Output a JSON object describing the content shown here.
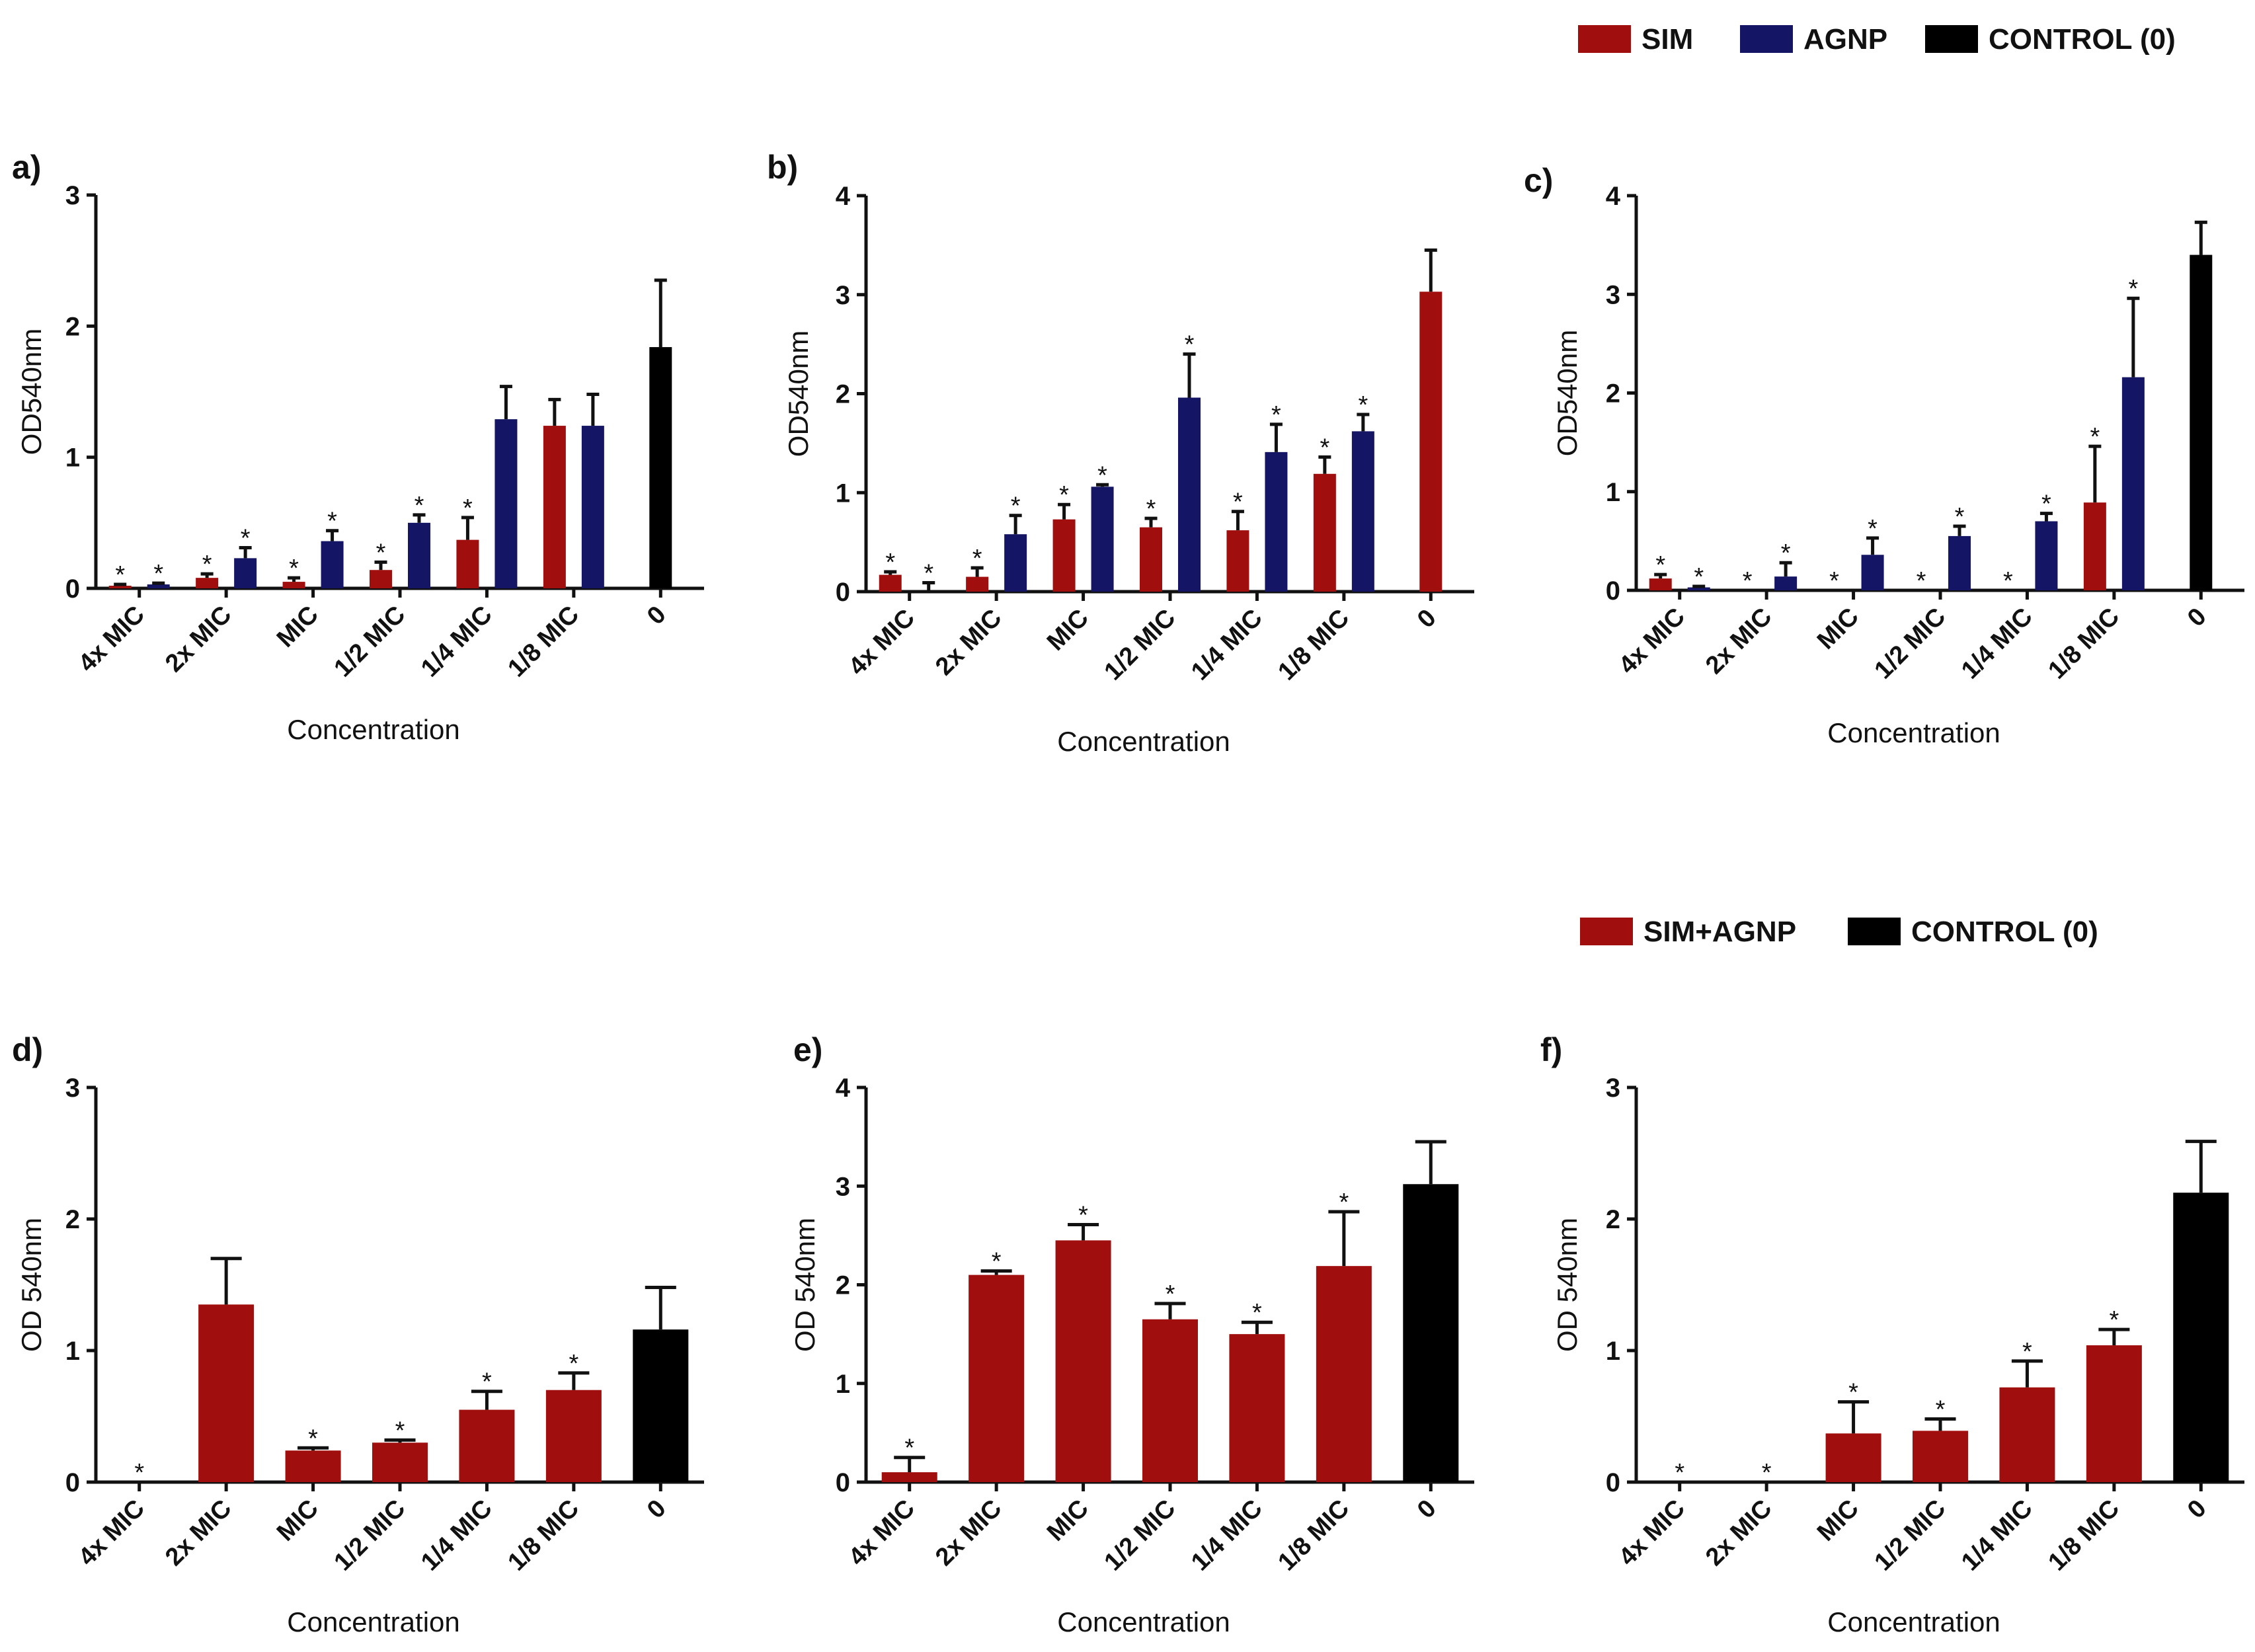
{
  "colors": {
    "SIM": "#a00e0e",
    "AGNP": "#151565",
    "CONTROL": "#000000",
    "SIM+AGNP": "#a00e0e"
  },
  "legends": [
    {
      "id": "legend-top",
      "entries": [
        {
          "label": "SIM",
          "color": "#a00e0e"
        },
        {
          "label": "AGNP",
          "color": "#151565"
        },
        {
          "label": "CONTROL (0)",
          "color": "#000000"
        }
      ]
    },
    {
      "id": "legend-bottom",
      "entries": [
        {
          "label": "SIM+AGNP",
          "color": "#a00e0e"
        },
        {
          "label": "CONTROL (0)",
          "color": "#000000"
        }
      ]
    }
  ],
  "chart_data": [
    {
      "panel": "a)",
      "type": "bar",
      "ylabel": "OD540nm",
      "xlabel": "Concentration",
      "ylim": [
        0,
        3
      ],
      "yticks": [
        0,
        1,
        2,
        3
      ],
      "categories": [
        "4x MIC",
        "2x MIC",
        "MIC",
        "1/2 MIC",
        "1/4 MIC",
        "1/8 MIC",
        "0"
      ],
      "series": [
        {
          "name": "SIM",
          "values": [
            0.02,
            0.08,
            0.05,
            0.14,
            0.37,
            1.24,
            null
          ],
          "errors": [
            0.01,
            0.03,
            0.03,
            0.06,
            0.17,
            0.2,
            null
          ],
          "sig": [
            true,
            true,
            true,
            true,
            true,
            false,
            false
          ]
        },
        {
          "name": "AGNP",
          "values": [
            0.03,
            0.23,
            0.36,
            0.5,
            1.29,
            1.24,
            null
          ],
          "errors": [
            0.01,
            0.08,
            0.08,
            0.06,
            0.25,
            0.24,
            null
          ],
          "sig": [
            true,
            true,
            true,
            true,
            false,
            false,
            false
          ]
        },
        {
          "name": "CONTROL (0)",
          "values": [
            null,
            null,
            null,
            null,
            null,
            null,
            1.84
          ],
          "errors": [
            null,
            null,
            null,
            null,
            null,
            null,
            0.51
          ],
          "sig": [
            false,
            false,
            false,
            false,
            false,
            false,
            false
          ]
        }
      ]
    },
    {
      "panel": "b)",
      "type": "bar",
      "ylabel": "OD540nm",
      "xlabel": "Concentration",
      "ylim": [
        0,
        4
      ],
      "yticks": [
        0,
        1,
        2,
        3,
        4
      ],
      "categories": [
        "4x MIC",
        "2x MIC",
        "MIC",
        "1/2 MIC",
        "1/4 MIC",
        "1/8 MIC",
        "0"
      ],
      "series": [
        {
          "name": "SIM",
          "values": [
            0.17,
            0.15,
            0.73,
            0.65,
            0.62,
            1.19,
            3.03
          ],
          "errors": [
            0.03,
            0.09,
            0.15,
            0.09,
            0.19,
            0.17,
            0.42
          ],
          "sig": [
            true,
            true,
            true,
            true,
            true,
            true,
            false
          ]
        },
        {
          "name": "AGNP",
          "values": [
            0.0,
            0.58,
            1.06,
            1.96,
            1.41,
            1.62,
            null
          ],
          "errors": [
            0.09,
            0.19,
            0.02,
            0.44,
            0.28,
            0.17,
            null
          ],
          "sig": [
            true,
            true,
            true,
            true,
            true,
            true,
            false
          ]
        }
      ]
    },
    {
      "panel": "c)",
      "type": "bar",
      "ylabel": "OD540nm",
      "xlabel": "Concentration",
      "ylim": [
        0,
        4
      ],
      "yticks": [
        0,
        1,
        2,
        3,
        4
      ],
      "categories": [
        "4x MIC",
        "2x MIC",
        "MIC",
        "1/2 MIC",
        "1/4 MIC",
        "1/8 MIC",
        "0"
      ],
      "series": [
        {
          "name": "SIM",
          "values": [
            0.12,
            0.0,
            0.0,
            0.0,
            0.0,
            0.89,
            null
          ],
          "errors": [
            0.04,
            null,
            null,
            null,
            null,
            0.57,
            null
          ],
          "sig": [
            true,
            true,
            true,
            true,
            true,
            true,
            false
          ]
        },
        {
          "name": "AGNP",
          "values": [
            0.03,
            0.14,
            0.36,
            0.55,
            0.7,
            2.16,
            null
          ],
          "errors": [
            0.01,
            0.14,
            0.17,
            0.1,
            0.08,
            0.8,
            null
          ],
          "sig": [
            true,
            true,
            true,
            true,
            true,
            true,
            false
          ]
        },
        {
          "name": "CONTROL (0)",
          "values": [
            null,
            null,
            null,
            null,
            null,
            null,
            3.4
          ],
          "errors": [
            null,
            null,
            null,
            null,
            null,
            null,
            0.33
          ],
          "sig": [
            false,
            false,
            false,
            false,
            false,
            false,
            false
          ]
        }
      ]
    },
    {
      "panel": "d)",
      "type": "bar",
      "ylabel": "OD 540nm",
      "xlabel": "Concentration",
      "ylim": [
        0,
        3
      ],
      "yticks": [
        0,
        1,
        2,
        3
      ],
      "categories": [
        "4x MIC",
        "2x MIC",
        "MIC",
        "1/2 MIC",
        "1/4 MIC",
        "1/8 MIC",
        "0"
      ],
      "series": [
        {
          "name": "SIM+AGNP",
          "values": [
            0.0,
            1.35,
            0.24,
            0.3,
            0.55,
            0.7,
            null
          ],
          "errors": [
            null,
            0.35,
            0.02,
            0.02,
            0.14,
            0.13,
            null
          ],
          "sig": [
            true,
            false,
            true,
            true,
            true,
            true,
            false
          ]
        },
        {
          "name": "CONTROL (0)",
          "values": [
            null,
            null,
            null,
            null,
            null,
            null,
            1.16
          ],
          "errors": [
            null,
            null,
            null,
            null,
            null,
            null,
            0.32
          ],
          "sig": [
            false,
            false,
            false,
            false,
            false,
            false,
            false
          ]
        }
      ]
    },
    {
      "panel": "e)",
      "type": "bar",
      "ylabel": "OD 540nm",
      "xlabel": "Concentration",
      "ylim": [
        0,
        4
      ],
      "yticks": [
        0,
        1,
        2,
        3,
        4
      ],
      "categories": [
        "4x MIC",
        "2x MIC",
        "MIC",
        "1/2 MIC",
        "1/4 MIC",
        "1/8 MIC",
        "0"
      ],
      "series": [
        {
          "name": "SIM+AGNP",
          "values": [
            0.1,
            2.1,
            2.45,
            1.65,
            1.5,
            2.19,
            null
          ],
          "errors": [
            0.15,
            0.04,
            0.16,
            0.16,
            0.12,
            0.55,
            null
          ],
          "sig": [
            true,
            true,
            true,
            true,
            true,
            true,
            false
          ]
        },
        {
          "name": "CONTROL (0)",
          "values": [
            null,
            null,
            null,
            null,
            null,
            null,
            3.02
          ],
          "errors": [
            null,
            null,
            null,
            null,
            null,
            null,
            0.43
          ],
          "sig": [
            false,
            false,
            false,
            false,
            false,
            false,
            false
          ]
        }
      ]
    },
    {
      "panel": "f)",
      "type": "bar",
      "ylabel": "OD 540nm",
      "xlabel": "Concentration",
      "ylim": [
        0,
        3
      ],
      "yticks": [
        0,
        1,
        2,
        3
      ],
      "categories": [
        "4x MIC",
        "2x MIC",
        "MIC",
        "1/2 MIC",
        "1/4 MIC",
        "1/8 MIC",
        "0"
      ],
      "series": [
        {
          "name": "SIM+AGNP",
          "values": [
            0.0,
            0.0,
            0.37,
            0.39,
            0.72,
            1.04,
            null
          ],
          "errors": [
            null,
            null,
            0.24,
            0.09,
            0.2,
            0.12,
            null
          ],
          "sig": [
            true,
            true,
            true,
            true,
            true,
            true,
            false
          ]
        },
        {
          "name": "CONTROL (0)",
          "values": [
            null,
            null,
            null,
            null,
            null,
            null,
            2.2
          ],
          "errors": [
            null,
            null,
            null,
            null,
            null,
            null,
            0.39
          ],
          "sig": [
            false,
            false,
            false,
            false,
            false,
            false,
            false
          ]
        }
      ]
    }
  ]
}
